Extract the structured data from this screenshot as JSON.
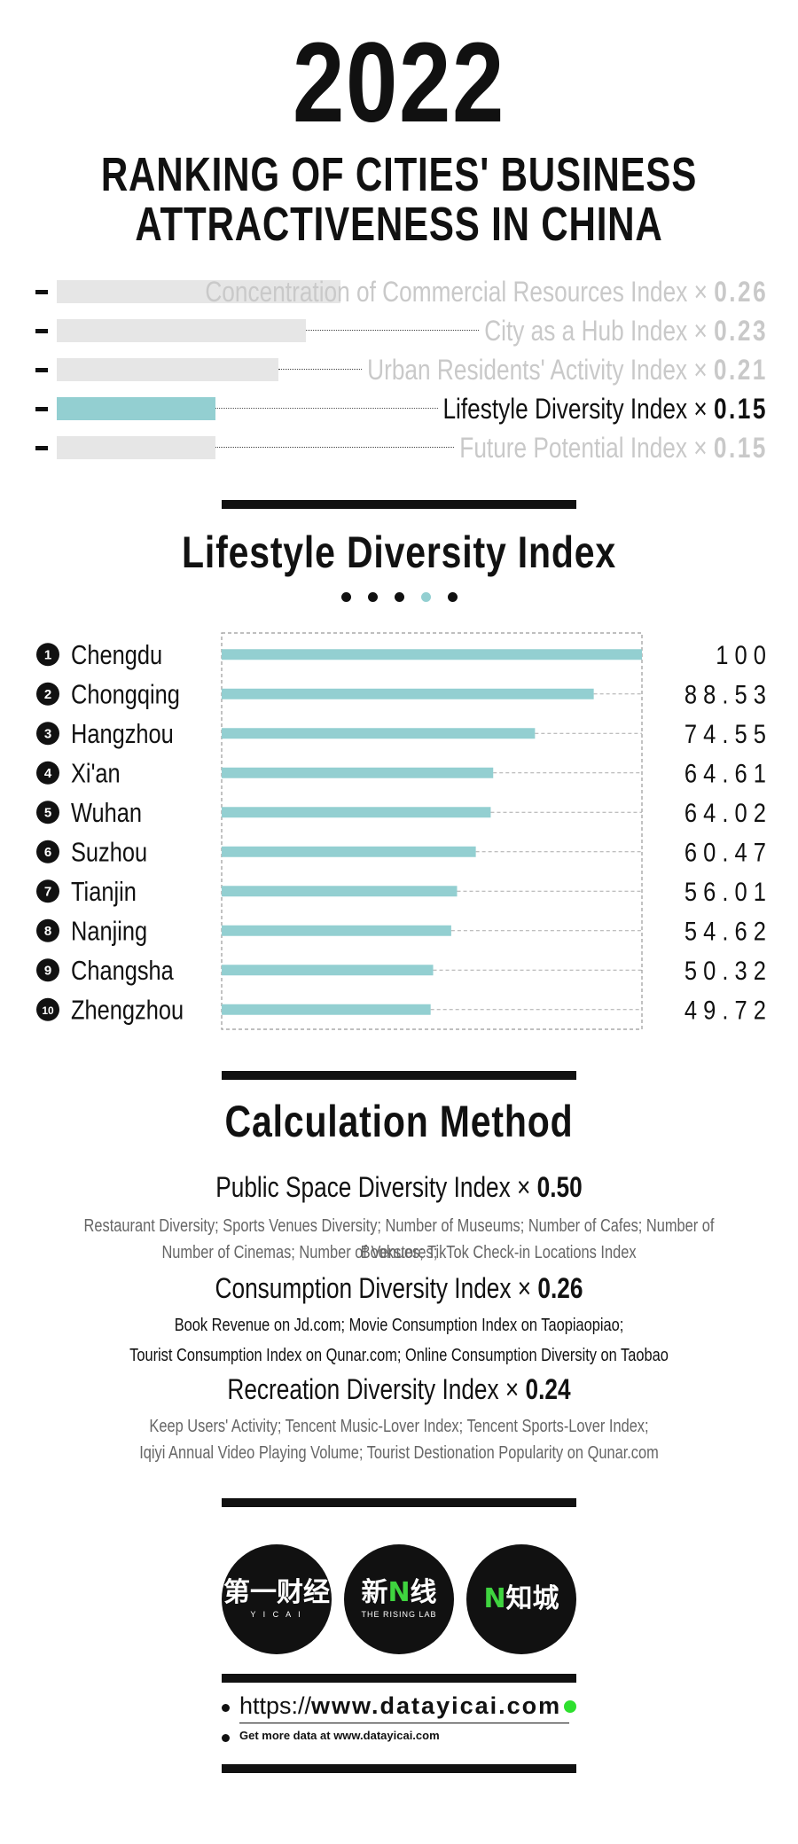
{
  "header": {
    "year": "2022",
    "title_line1": "RANKING OF CITIES' BUSINESS",
    "title_line2": "ATTRACTIVENESS IN CHINA"
  },
  "indices": [
    {
      "label": "Concentration of Commercial Resources Index",
      "times": "×",
      "weight": "0.26",
      "active": false,
      "bar": 0.41
    },
    {
      "label": "City as a Hub Index",
      "times": "×",
      "weight": "0.23",
      "active": false,
      "bar": 0.36
    },
    {
      "label": "Urban Residents' Activity Index",
      "times": "×",
      "weight": "0.21",
      "active": false,
      "bar": 0.32
    },
    {
      "label": "Lifestyle Diversity Index",
      "times": "×",
      "weight": "0.15",
      "active": true,
      "bar": 0.23
    },
    {
      "label": "Future Potential Index",
      "times": "×",
      "weight": "0.15",
      "active": false,
      "bar": 0.23
    }
  ],
  "section_title": "Lifestyle Diversity Index",
  "pager": {
    "count": 5,
    "active_index": 3
  },
  "colors": {
    "accent": "#93cfd1",
    "inactive_text": "#c9c9c9",
    "inactive_bar": "#e6e6e6",
    "dark": "#111111",
    "green": "#2ee02e"
  },
  "chart_data": {
    "type": "bar",
    "orientation": "horizontal",
    "title": "Lifestyle Diversity Index",
    "ranks": [
      "1",
      "2",
      "3",
      "4",
      "5",
      "6",
      "7",
      "8",
      "9",
      "10"
    ],
    "categories": [
      "Chengdu",
      "Chongqing",
      "Hangzhou",
      "Xi'an",
      "Wuhan",
      "Suzhou",
      "Tianjin",
      "Nanjing",
      "Changsha",
      "Zhengzhou"
    ],
    "values": [
      100,
      88.53,
      74.55,
      64.61,
      64.02,
      60.47,
      56.01,
      54.62,
      50.32,
      49.72
    ],
    "value_labels": [
      "1 0 0",
      "8 8 . 5 3",
      "7 4 . 5 5",
      "6 4 . 6 1",
      "6 4 . 0 2",
      "6 0 . 4 7",
      "5 6 . 0 1",
      "5 4 . 6 2",
      "5 0 . 3 2",
      "4 9 . 7 2"
    ],
    "xlim": [
      0,
      100
    ],
    "grid": false
  },
  "method": {
    "title": "Calculation Method",
    "items": [
      {
        "name": "Public Space Diversity Index",
        "times": "×",
        "weight": "0.50",
        "desc1": "Restaurant Diversity; Sports Venues Diversity; Number of Museums; Number of Cafes; Number of Bookstores;",
        "desc2": "Number of Cinemas; Number of Venues; TikTok Check-in Locations Index"
      },
      {
        "name": "Consumption Diversity Index",
        "times": "×",
        "weight": "0.26",
        "desc1": "Book Revenue on Jd.com; Movie Consumption Index on Taopiaopiao;",
        "desc2": "Tourist Consumption Index on Qunar.com; Online Consumption Diversity on Taobao"
      },
      {
        "name": "Recreation Diversity Index",
        "times": "×",
        "weight": "0.24",
        "desc1": "Keep Users' Activity; Tencent Music-Lover Index; Tencent Sports-Lover Index;",
        "desc2": "Iqiyi Annual Video Playing Volume; Tourist Destionation Popularity on Qunar.com"
      }
    ]
  },
  "logos": [
    {
      "text": "第一财经",
      "sub": "Y I C A I"
    },
    {
      "text_a": "新",
      "text_b": "N",
      "text_c": "线",
      "sub": "THE RISING LAB"
    },
    {
      "text_a": "N",
      "text_b": "知城"
    }
  ],
  "footer": {
    "url_prefix": "https://",
    "url_domain": "www.datayicai.com",
    "note": "Get more data at www.datayicai.com"
  }
}
